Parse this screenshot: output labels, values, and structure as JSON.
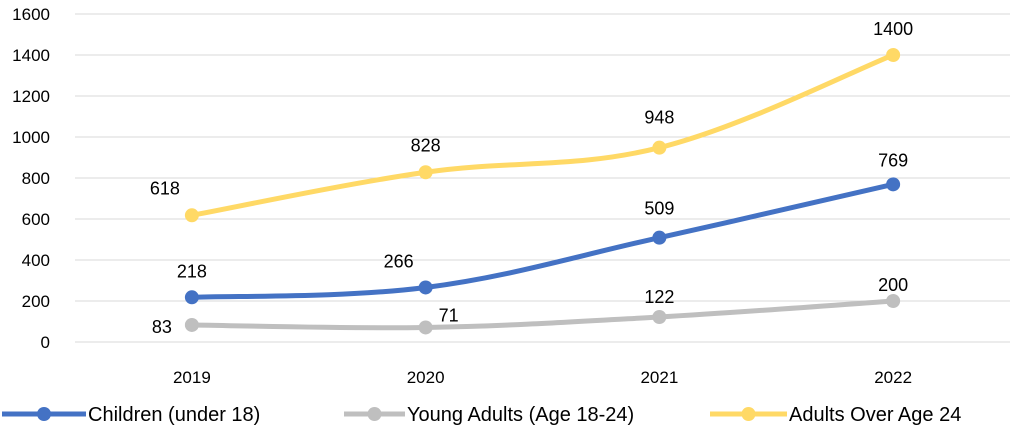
{
  "chart_data": {
    "type": "line",
    "title": "",
    "xlabel": "",
    "ylabel": "",
    "categories": [
      "2019",
      "2020",
      "2021",
      "2022"
    ],
    "ylim": [
      0,
      1600
    ],
    "yticks": [
      0,
      200,
      400,
      600,
      800,
      1000,
      1200,
      1400,
      1600
    ],
    "grid": true,
    "legend_position": "bottom",
    "series": [
      {
        "name": "Children (under 18)",
        "color": "#4472c4",
        "values": [
          218,
          266,
          509,
          769
        ]
      },
      {
        "name": "Young Adults (Age 18-24)",
        "color": "#bfbfbf",
        "values": [
          83,
          71,
          122,
          200
        ]
      },
      {
        "name": "Adults Over Age 24",
        "color": "#ffd966",
        "values": [
          618,
          828,
          948,
          1400
        ]
      }
    ]
  }
}
